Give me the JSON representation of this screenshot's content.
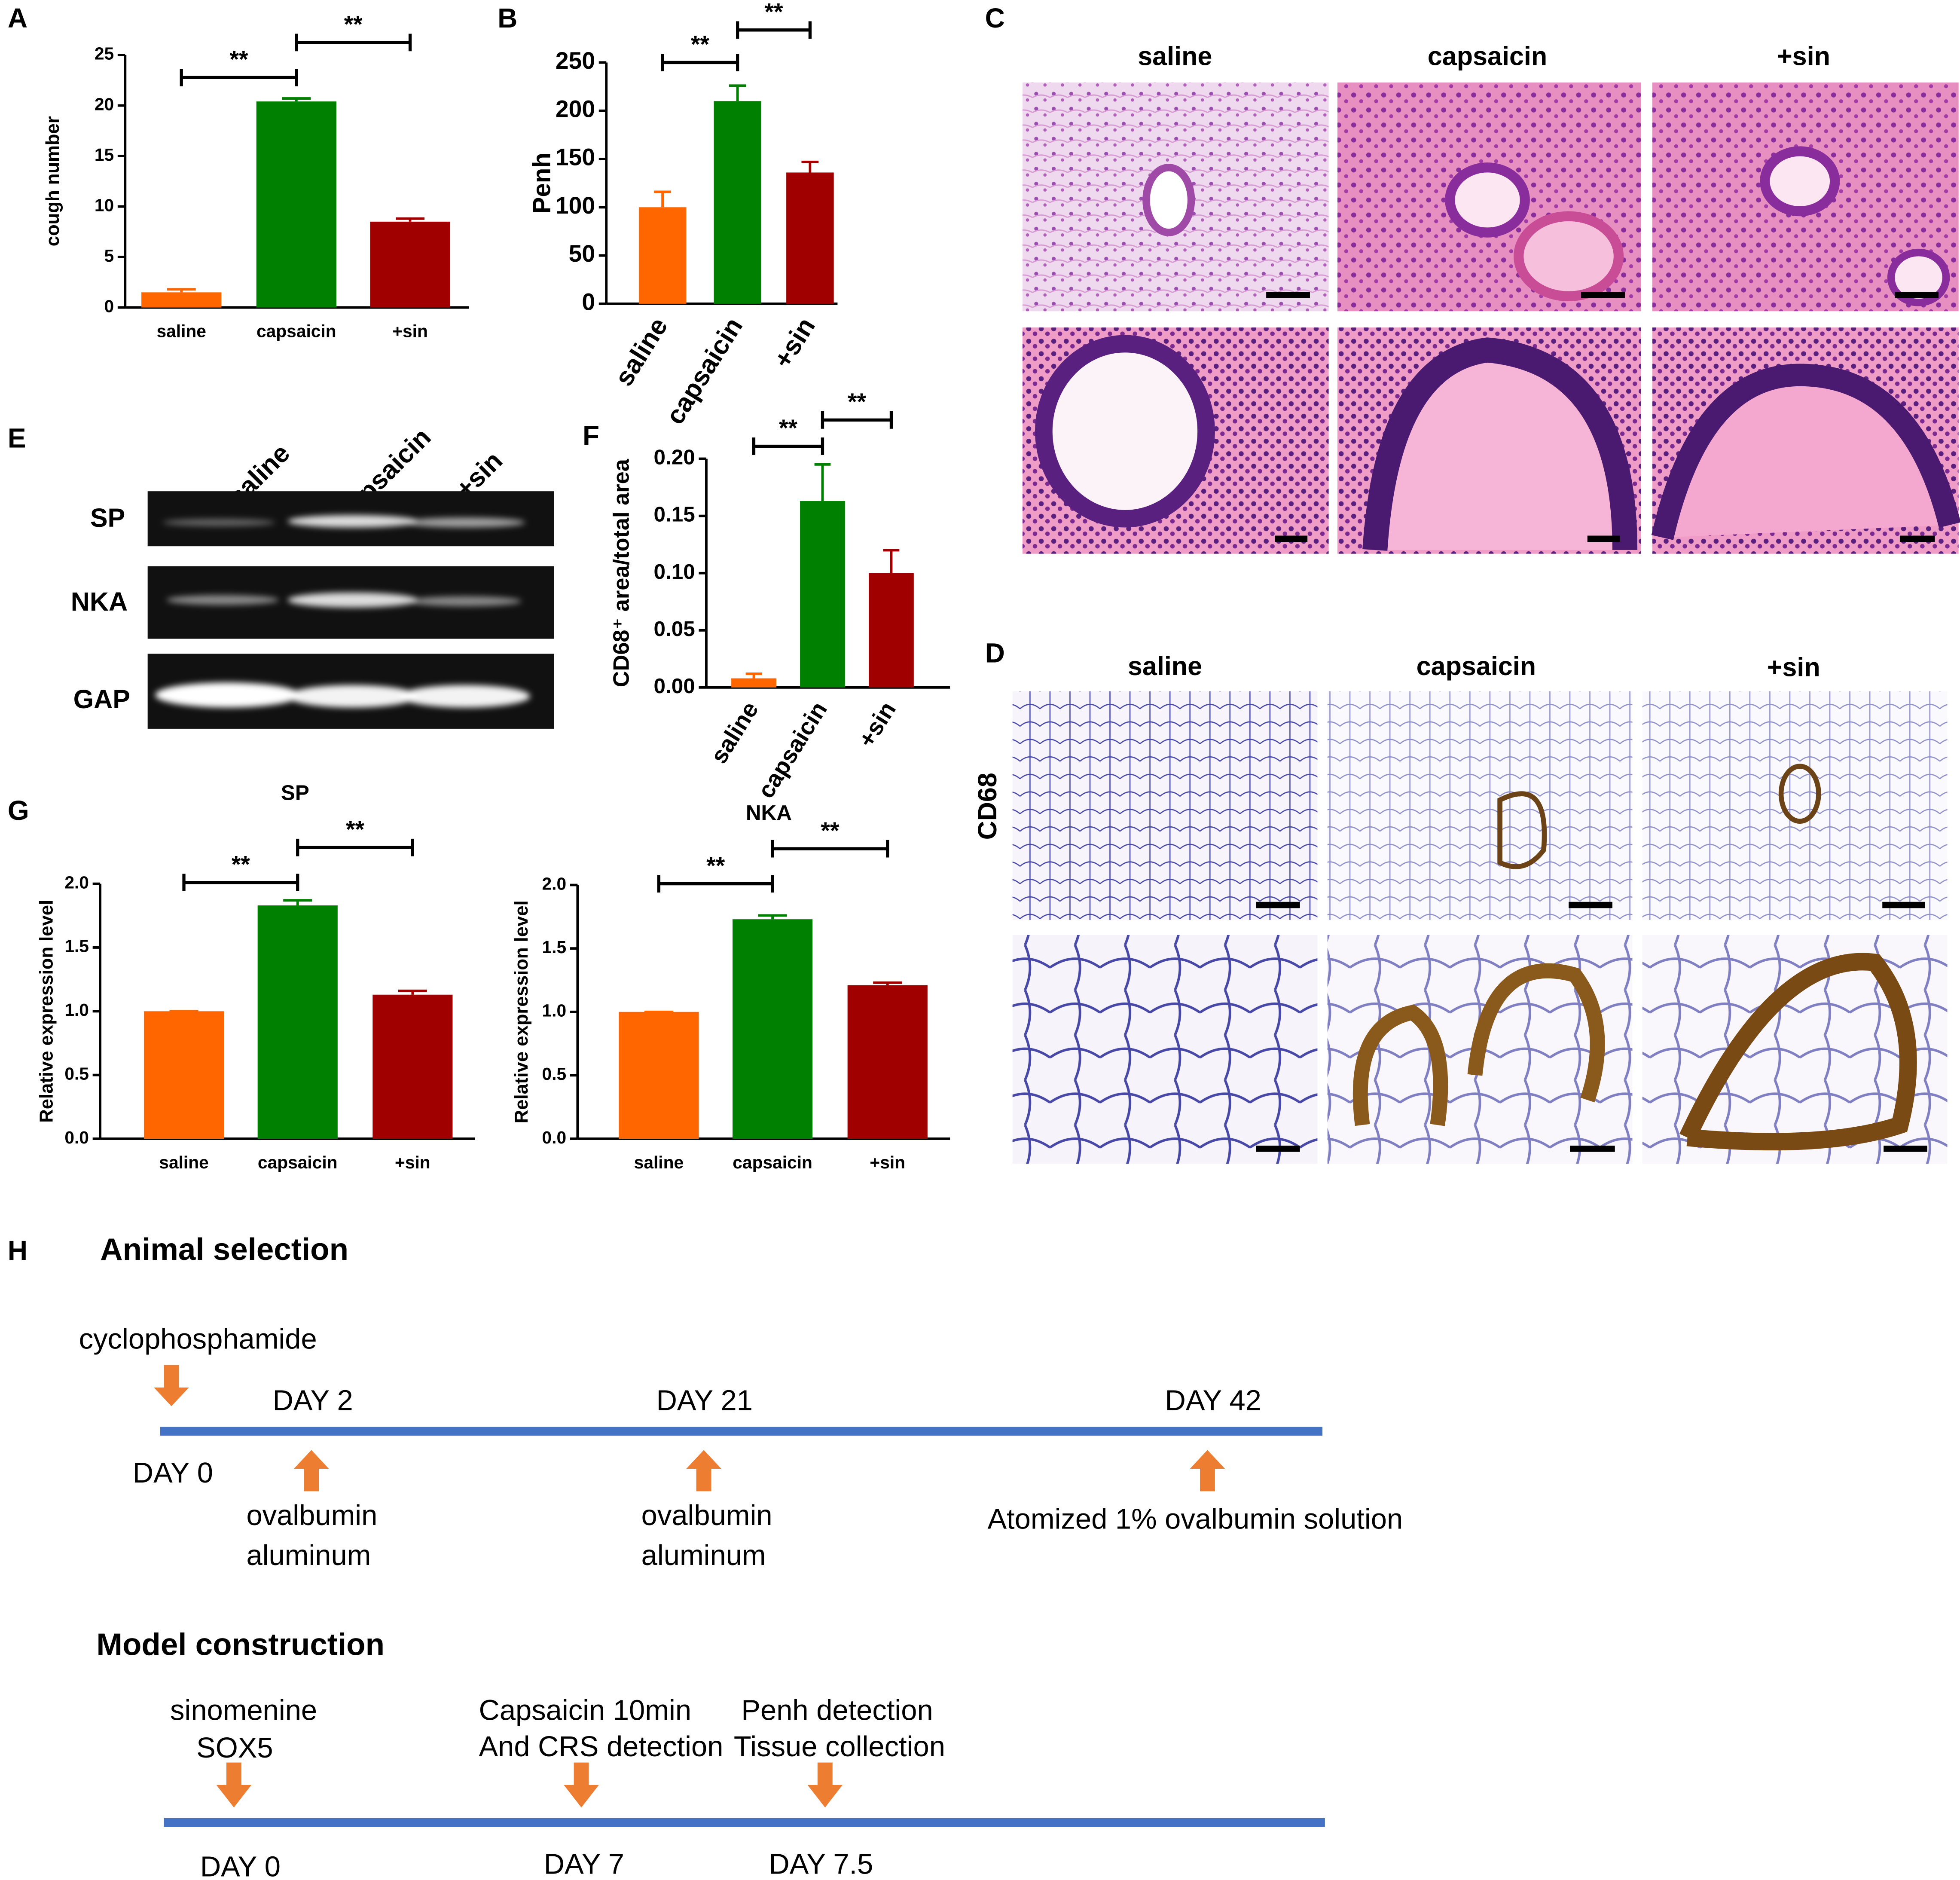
{
  "chart_data": [
    {
      "type": "bar",
      "panel": "A",
      "ylabel": "cough number",
      "categories": [
        "saline",
        "capsaicin",
        "+sin"
      ],
      "values": [
        1.5,
        20.4,
        8.5
      ],
      "errors": [
        0.3,
        0.3,
        0.3
      ],
      "colors": [
        "#ff6600",
        "#008000",
        "#a00000"
      ],
      "ylim": [
        0,
        25
      ],
      "yticks": [
        0,
        5,
        10,
        15,
        20,
        25
      ],
      "significance": [
        "**",
        "**"
      ]
    },
    {
      "type": "bar",
      "panel": "B",
      "ylabel": "Penh",
      "categories": [
        "saline",
        "capsaicin",
        "+sin"
      ],
      "values": [
        100,
        210,
        136
      ],
      "errors": [
        16,
        16,
        11
      ],
      "colors": [
        "#ff6600",
        "#008000",
        "#a00000"
      ],
      "ylim": [
        0,
        250
      ],
      "yticks": [
        0,
        50,
        100,
        150,
        200,
        250
      ],
      "significance": [
        "**",
        "**"
      ]
    },
    {
      "type": "bar",
      "panel": "F",
      "ylabel": "CD68⁺ area/total area",
      "categories": [
        "saline",
        "capsaicin",
        "+sin"
      ],
      "values": [
        0.008,
        0.163,
        0.1
      ],
      "errors": [
        0.004,
        0.032,
        0.02
      ],
      "colors": [
        "#ff6600",
        "#008000",
        "#a00000"
      ],
      "ylim": [
        0,
        0.2
      ],
      "yticks": [
        {
          "value": 0,
          "label": "0.00"
        },
        {
          "value": 0.05,
          "label": "0.05"
        },
        {
          "value": 0.1,
          "label": "0.10"
        },
        {
          "value": 0.15,
          "label": "0.15"
        },
        {
          "value": 0.2,
          "label": "0.20"
        }
      ],
      "significance": [
        "**",
        "**"
      ]
    },
    {
      "type": "bar",
      "panel": "G",
      "title": "SP",
      "ylabel": "Relative expression level",
      "categories": [
        "saline",
        "capsaicin",
        "+sin"
      ],
      "values": [
        1.0,
        1.83,
        1.13
      ],
      "errors": [
        0,
        0.04,
        0.03
      ],
      "colors": [
        "#ff6600",
        "#008000",
        "#a00000"
      ],
      "ylim": [
        0,
        2
      ],
      "yticks": [
        {
          "value": 0,
          "label": "0.0"
        },
        {
          "value": 0.5,
          "label": "0.5"
        },
        {
          "value": 1,
          "label": "1.0"
        },
        {
          "value": 1.5,
          "label": "1.5"
        },
        {
          "value": 2,
          "label": "2.0"
        }
      ],
      "significance": [
        "**",
        "**"
      ]
    },
    {
      "type": "bar",
      "title": "NKA",
      "ylabel": "Relative expression level",
      "categories": [
        "saline",
        "capsaicin",
        "+sin"
      ],
      "values": [
        1.0,
        1.73,
        1.21
      ],
      "errors": [
        0,
        0.03,
        0.02
      ],
      "colors": [
        "#ff6600",
        "#008000",
        "#a00000"
      ],
      "ylim": [
        0,
        2
      ],
      "yticks": [
        {
          "value": 0,
          "label": "0.0"
        },
        {
          "value": 0.5,
          "label": "0.5"
        },
        {
          "value": 1,
          "label": "1.0"
        },
        {
          "value": 1.5,
          "label": "1.5"
        },
        {
          "value": 2,
          "label": "2.0"
        }
      ],
      "significance": [
        "**",
        "**"
      ]
    }
  ],
  "micrographs": [
    {
      "panel": "C",
      "columns": [
        "saline",
        "capsaicin",
        "+sin"
      ]
    },
    {
      "panel": "D",
      "columns": [
        "saline",
        "capsaicin",
        "+sin"
      ],
      "row_label": "CD68"
    }
  ],
  "blot": {
    "panel": "E",
    "columns": [
      "saline",
      "capsaicin",
      "+sin"
    ],
    "rows": [
      "SP",
      "NKA",
      "GAP"
    ]
  },
  "timeline": {
    "panel": "H",
    "animal_selection": {
      "title": "Animal selection",
      "agent": "cyclophosphamide",
      "days": [
        "DAY 0",
        "DAY 2",
        "DAY 21",
        "DAY 42"
      ],
      "treatments": [
        [
          "ovalbumin",
          "aluminum"
        ],
        [
          "ovalbumin",
          "aluminum"
        ],
        [
          "Atomized 1% ovalbumin solution"
        ]
      ]
    },
    "model_construction": {
      "title": "Model construction",
      "treatments": [
        [
          "sinomenine",
          "SOX5"
        ],
        [
          "Capsaicin 10min",
          "And CRS detection"
        ],
        [
          "Penh detection",
          "Tissue collection"
        ]
      ],
      "days": [
        "DAY 0",
        "DAY 7",
        "DAY 7.5"
      ]
    }
  }
}
